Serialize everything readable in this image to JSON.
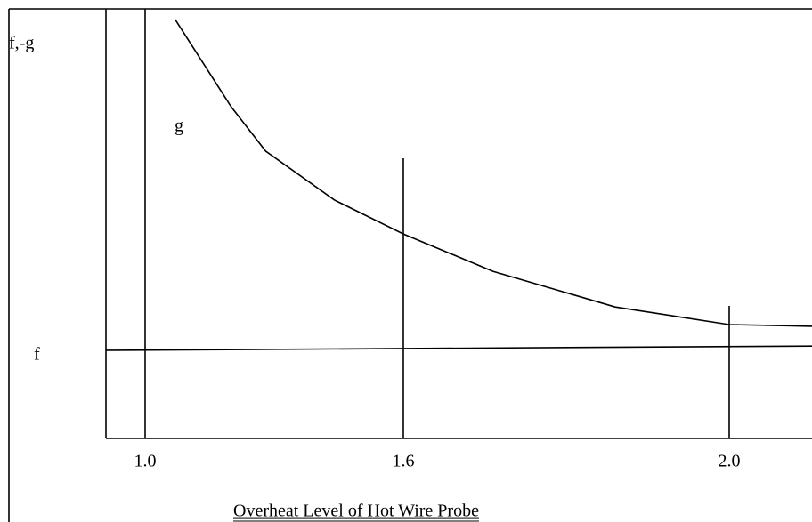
{
  "chart_data": {
    "type": "line",
    "x_label": "Overheat Level of Hot Wire Probe",
    "y_label": "f,-g",
    "xlim": [
      0.91,
      2.1
    ],
    "xticks": [
      {
        "value": 1.0,
        "label": "1.0"
      },
      1.6,
      {
        "value": 2.0,
        "label": "2.0"
      }
    ],
    "ylim": [
      0,
      1
    ],
    "series": [
      {
        "name": "g",
        "color": "#000000",
        "x": [
          1.07,
          1.2,
          1.28,
          1.44,
          1.6,
          1.71,
          1.86,
          2.0,
          2.1
        ],
        "values": [
          0.975,
          0.772,
          0.669,
          0.555,
          0.476,
          0.389,
          0.306,
          0.265,
          0.261
        ]
      },
      {
        "name": "f",
        "color": "#000000",
        "x": [
          0.91,
          2.1
        ],
        "values": [
          0.205,
          0.215
        ]
      }
    ]
  }
}
